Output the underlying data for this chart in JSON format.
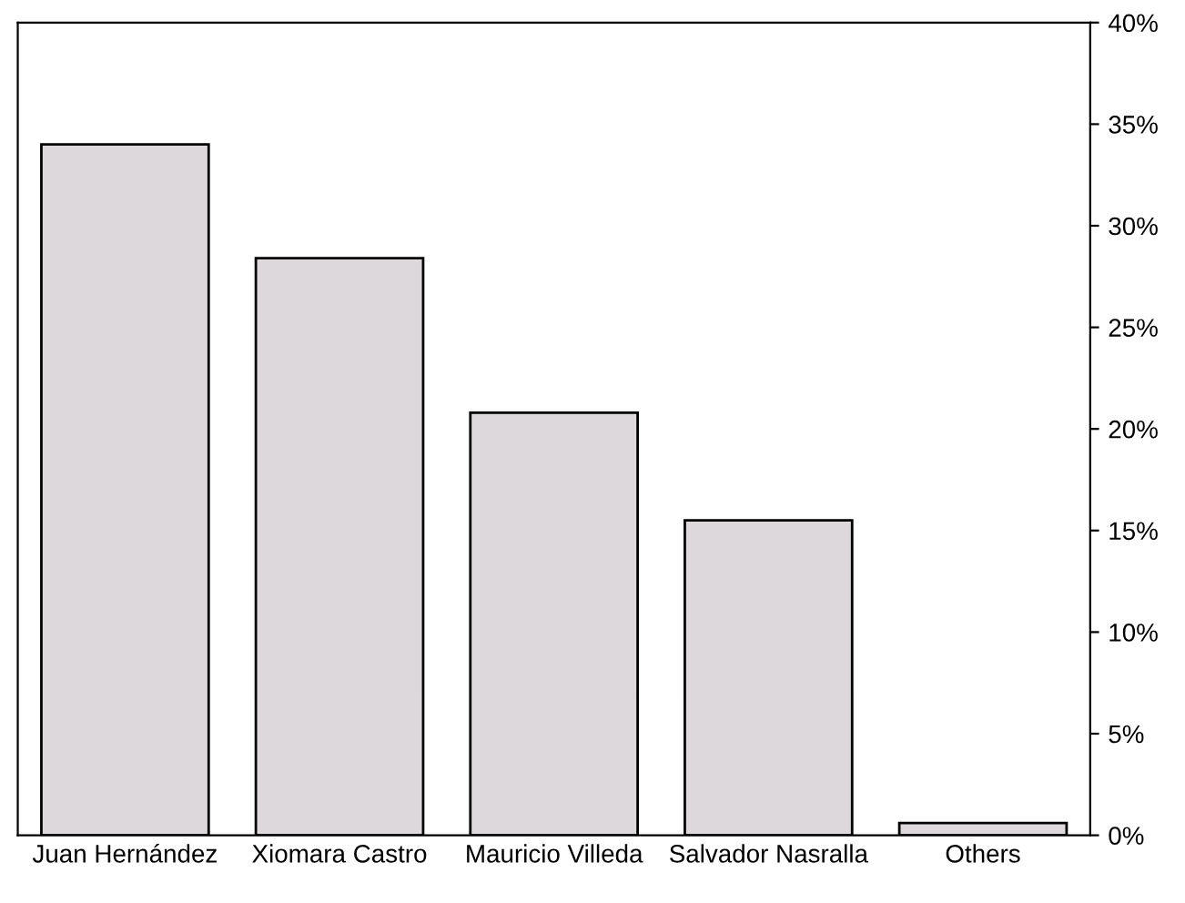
{
  "chart_data": {
    "type": "bar",
    "categories": [
      "Juan Hernández",
      "Xiomara Castro",
      "Mauricio Villeda",
      "Salvador Nasralla",
      "Others"
    ],
    "values": [
      34,
      28.4,
      20.8,
      15.5,
      0.6
    ],
    "color": "#dcd8dc",
    "ylim": [
      0,
      40
    ],
    "yticks": [
      {
        "value": 0,
        "label": "0%"
      },
      {
        "value": 5,
        "label": "5%"
      },
      {
        "value": 10,
        "label": "10%"
      },
      {
        "value": 15,
        "label": "15%"
      },
      {
        "value": 20,
        "label": "20%"
      },
      {
        "value": 25,
        "label": "25%"
      },
      {
        "value": 30,
        "label": "30%"
      },
      {
        "value": 35,
        "label": "35%"
      },
      {
        "value": 40,
        "label": "40%"
      }
    ],
    "grid": false
  }
}
